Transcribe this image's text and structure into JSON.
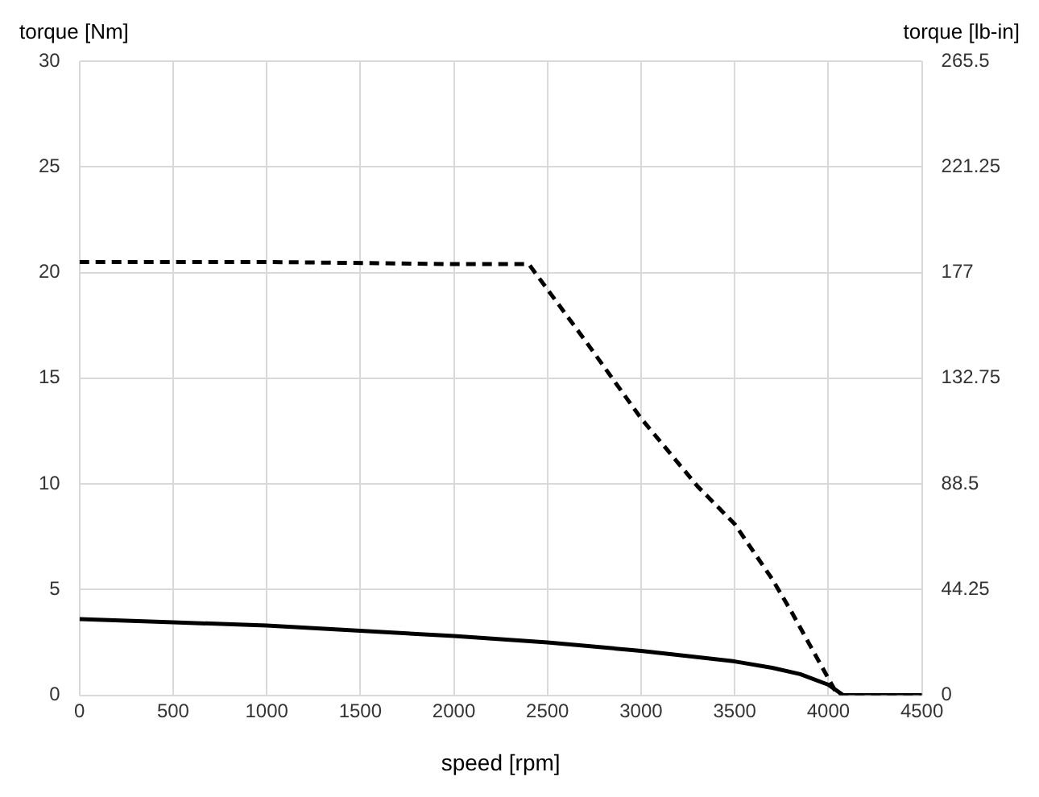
{
  "chart_data": {
    "type": "line",
    "xlabel": "speed [rpm]",
    "ylabel": "torque [Nm]",
    "y2label": "torque [lb-in]",
    "xlim": [
      0,
      4500
    ],
    "xticks": [
      0,
      500,
      1000,
      1500,
      2000,
      2500,
      3000,
      3500,
      4000,
      4500
    ],
    "ylim": [
      0,
      30
    ],
    "yticks": [
      0,
      5,
      10,
      15,
      20,
      25,
      30
    ],
    "y2lim": [
      0,
      265.5
    ],
    "y2ticks": [
      0,
      44.25,
      88.5,
      132.75,
      177,
      221.25,
      265.5
    ],
    "grid": true,
    "legend": false,
    "marker": "none",
    "series": [
      {
        "color": "#000000",
        "line_style": "dashed",
        "x": [
          0,
          1000,
          2000,
          2400,
          2700,
          3000,
          3300,
          3500,
          3700,
          3800,
          3900,
          4050,
          4100,
          4500
        ],
        "values": [
          20.5,
          20.5,
          20.4,
          20.4,
          16.8,
          13.1,
          9.9,
          8.1,
          5.5,
          4.0,
          2.4,
          0,
          0,
          0
        ]
      },
      {
        "color": "#000000",
        "line_style": "solid",
        "x": [
          0,
          500,
          1000,
          1500,
          2000,
          2500,
          3000,
          3300,
          3500,
          3700,
          3850,
          4000,
          4080,
          4500
        ],
        "values": [
          3.6,
          3.45,
          3.3,
          3.05,
          2.8,
          2.5,
          2.1,
          1.8,
          1.6,
          1.3,
          1.0,
          0.5,
          0,
          0
        ]
      }
    ]
  }
}
